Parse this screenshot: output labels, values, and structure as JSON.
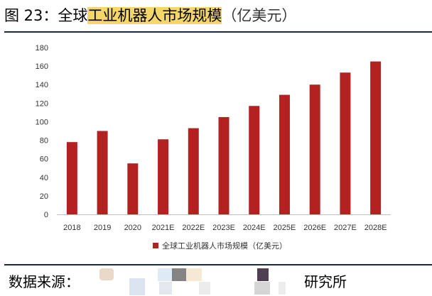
{
  "figure": {
    "label": "图 23：",
    "title_plain": "全球",
    "title_highlight": "工业机器人市场规模",
    "title_unit": "（亿美元）"
  },
  "source": {
    "label": "数据来源：",
    "suffix": "研究所"
  },
  "colors": {
    "bar": "#b42121",
    "axis": "#bfbfbf",
    "tick_text": "#333333"
  },
  "chart_data": {
    "type": "bar",
    "categories": [
      "2018",
      "2019",
      "2020",
      "2021E",
      "2022E",
      "2023E",
      "2024E",
      "2025E",
      "2026E",
      "2027E",
      "2028E"
    ],
    "series": [
      {
        "name": "全球工业机器人市场规模（亿美元）",
        "values": [
          78,
          90,
          55,
          81,
          93,
          105,
          117,
          129,
          140,
          153,
          165
        ]
      }
    ],
    "yticks": [
      0,
      20,
      40,
      60,
      80,
      100,
      120,
      140,
      160,
      180
    ],
    "ylim": [
      0,
      180
    ],
    "grid": false,
    "legend_position": "bottom-center",
    "title": "",
    "xlabel": "",
    "ylabel": ""
  }
}
